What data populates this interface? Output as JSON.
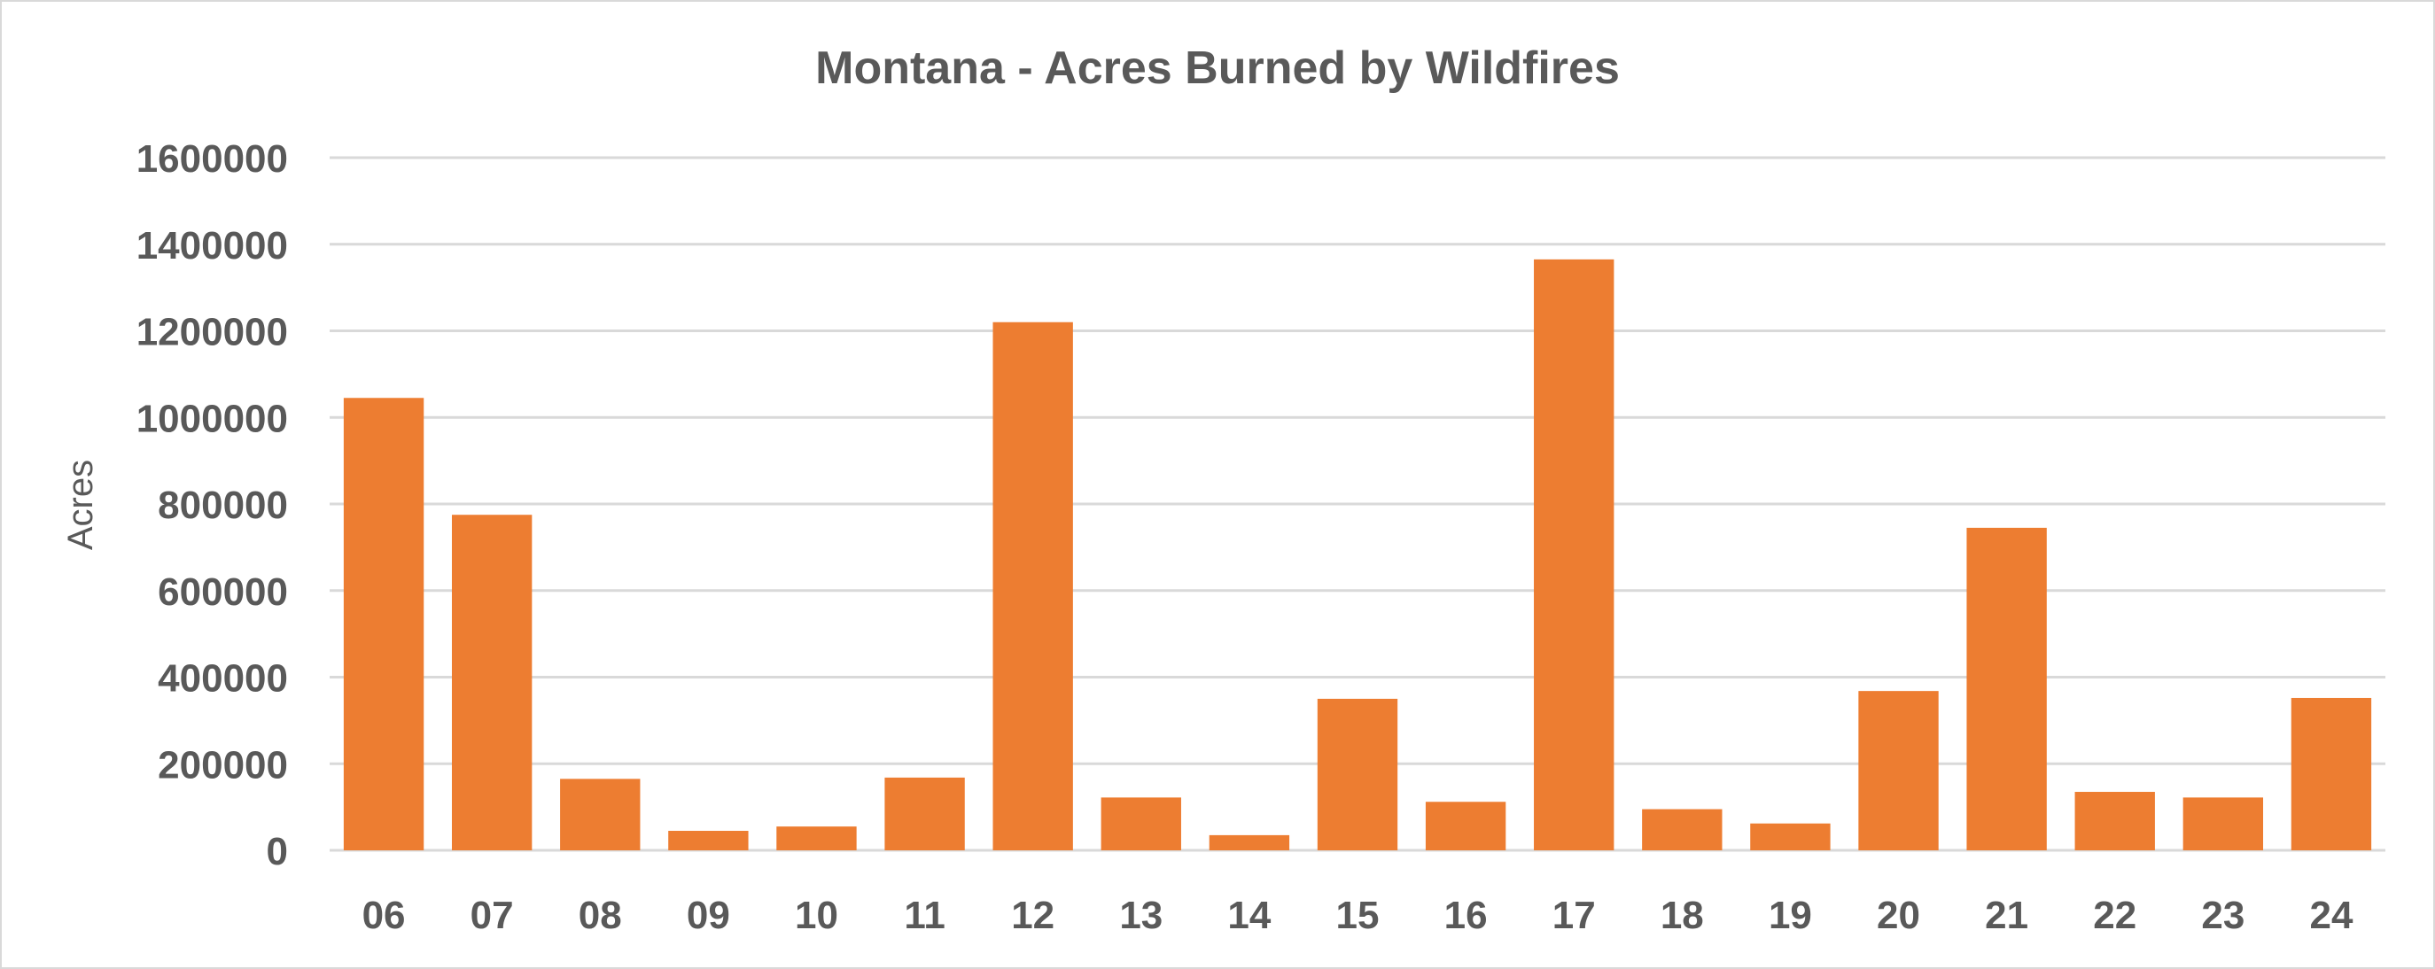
{
  "chart_data": {
    "type": "bar",
    "title": "Montana - Acres Burned by Wildfires",
    "xlabel": "",
    "ylabel": "Acres",
    "categories": [
      "06",
      "07",
      "08",
      "09",
      "10",
      "11",
      "12",
      "13",
      "14",
      "15",
      "16",
      "17",
      "18",
      "19",
      "20",
      "21",
      "22",
      "23",
      "24"
    ],
    "values": [
      1045000,
      775000,
      165000,
      45000,
      55000,
      168000,
      1220000,
      122000,
      35000,
      350000,
      112000,
      1365000,
      95000,
      62000,
      368000,
      745000,
      135000,
      122000,
      352000
    ],
    "ylim": [
      0,
      1600000
    ],
    "yticks": [
      "0",
      "200000",
      "400000",
      "600000",
      "800000",
      "1000000",
      "1200000",
      "1400000",
      "1600000"
    ],
    "grid": true,
    "legend": "none",
    "colors": {
      "bar": "#ED7D31",
      "grid": "#d9d9d9",
      "text": "#595959",
      "border": "#d9d9d9"
    }
  }
}
